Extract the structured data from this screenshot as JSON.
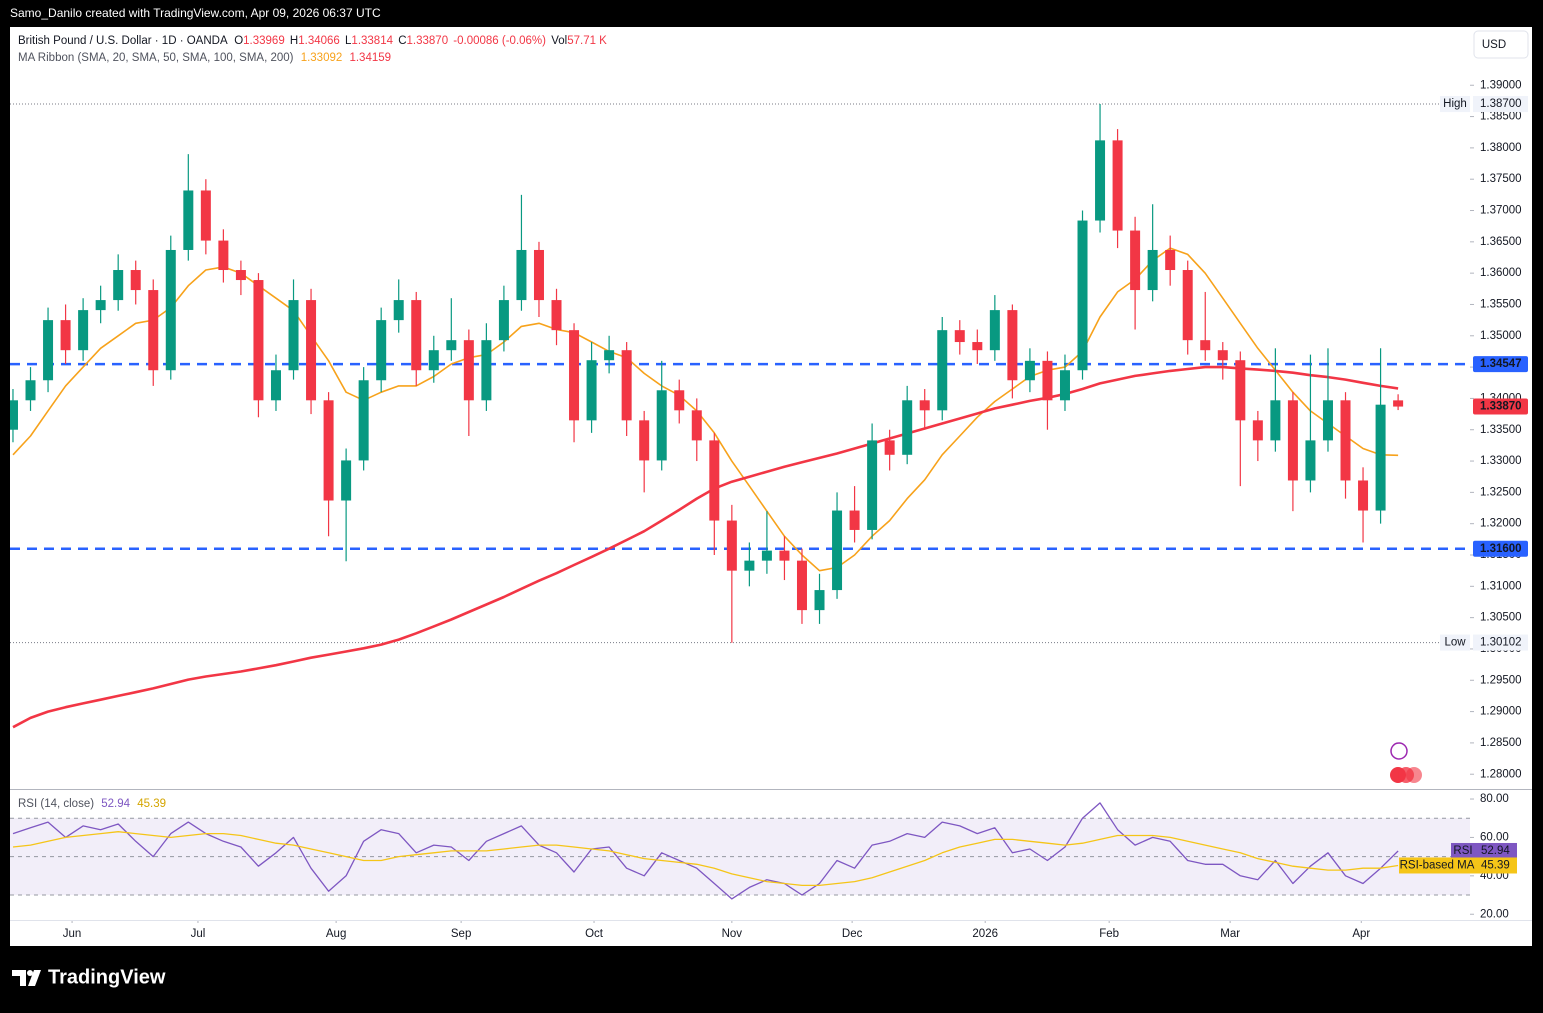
{
  "top_bar": "Samo_Danilo created with TradingView.com, Apr 09, 2026 06:37 UTC",
  "currency_button": "USD",
  "footer_logo": "TradingView",
  "chart_data": [
    {
      "type": "candlestick",
      "title": "British Pound / U.S. Dollar · 1D · OANDA",
      "ohlc_labels": [
        "O",
        "H",
        "L",
        "C"
      ],
      "change": "-0.00086 (-0.06%)",
      "volume_label": "Vol",
      "volume": "57.71 K",
      "indicator": "MA Ribbon (SMA, 20, SMA, 50, SMA, 100, SMA, 200)",
      "up_color": "#089981",
      "down_color": "#f23645",
      "candles": [
        [
          1.335,
          1.3415,
          1.333,
          1.3397
        ],
        [
          1.3397,
          1.345,
          1.338,
          1.3429
        ],
        [
          1.3429,
          1.3545,
          1.341,
          1.3525
        ],
        [
          1.3525,
          1.355,
          1.3455,
          1.3477
        ],
        [
          1.3477,
          1.356,
          1.346,
          1.3541
        ],
        [
          1.3541,
          1.358,
          1.352,
          1.3557
        ],
        [
          1.3557,
          1.363,
          1.354,
          1.3605
        ],
        [
          1.3605,
          1.362,
          1.355,
          1.3573
        ],
        [
          1.3573,
          1.359,
          1.342,
          1.3445
        ],
        [
          1.3445,
          1.366,
          1.343,
          1.3637
        ],
        [
          1.3637,
          1.379,
          1.362,
          1.3732
        ],
        [
          1.3732,
          1.375,
          1.363,
          1.3652
        ],
        [
          1.3652,
          1.367,
          1.3585,
          1.3605
        ],
        [
          1.3605,
          1.362,
          1.3565,
          1.3589
        ],
        [
          1.3589,
          1.36,
          1.337,
          1.3397
        ],
        [
          1.3397,
          1.347,
          1.338,
          1.3445
        ],
        [
          1.3445,
          1.359,
          1.343,
          1.3557
        ],
        [
          1.3557,
          1.3575,
          1.3375,
          1.3397
        ],
        [
          1.3397,
          1.341,
          1.318,
          1.3237
        ],
        [
          1.3237,
          1.332,
          1.314,
          1.3301
        ],
        [
          1.3301,
          1.345,
          1.3285,
          1.3429
        ],
        [
          1.3429,
          1.3545,
          1.341,
          1.3525
        ],
        [
          1.3525,
          1.359,
          1.3505,
          1.3557
        ],
        [
          1.3557,
          1.357,
          1.342,
          1.3445
        ],
        [
          1.3445,
          1.35,
          1.3425,
          1.3477
        ],
        [
          1.3477,
          1.356,
          1.346,
          1.3493
        ],
        [
          1.3493,
          1.351,
          1.334,
          1.3397
        ],
        [
          1.3397,
          1.352,
          1.338,
          1.3493
        ],
        [
          1.3493,
          1.358,
          1.3475,
          1.3557
        ],
        [
          1.3557,
          1.3725,
          1.354,
          1.3637
        ],
        [
          1.3637,
          1.365,
          1.353,
          1.3557
        ],
        [
          1.3557,
          1.3575,
          1.3485,
          1.3509
        ],
        [
          1.3509,
          1.352,
          1.333,
          1.3365
        ],
        [
          1.3365,
          1.349,
          1.3345,
          1.3461
        ],
        [
          1.3461,
          1.35,
          1.344,
          1.3477
        ],
        [
          1.3477,
          1.349,
          1.334,
          1.3365
        ],
        [
          1.3365,
          1.338,
          1.325,
          1.3301
        ],
        [
          1.3301,
          1.346,
          1.3285,
          1.3413
        ],
        [
          1.3413,
          1.343,
          1.336,
          1.3381
        ],
        [
          1.3381,
          1.34,
          1.33,
          1.3333
        ],
        [
          1.3333,
          1.3345,
          1.315,
          1.3205
        ],
        [
          1.3205,
          1.323,
          1.301,
          1.3125
        ],
        [
          1.3125,
          1.317,
          1.31,
          1.3141
        ],
        [
          1.3141,
          1.322,
          1.312,
          1.3157
        ],
        [
          1.3157,
          1.318,
          1.311,
          1.3141
        ],
        [
          1.3141,
          1.316,
          1.304,
          1.3062
        ],
        [
          1.3062,
          1.312,
          1.304,
          1.3094
        ],
        [
          1.3094,
          1.325,
          1.308,
          1.3221
        ],
        [
          1.3221,
          1.326,
          1.317,
          1.319
        ],
        [
          1.319,
          1.336,
          1.3175,
          1.3333
        ],
        [
          1.3333,
          1.335,
          1.3285,
          1.331
        ],
        [
          1.331,
          1.342,
          1.3295,
          1.3397
        ],
        [
          1.3397,
          1.3415,
          1.335,
          1.3381
        ],
        [
          1.3381,
          1.353,
          1.3365,
          1.3509
        ],
        [
          1.3509,
          1.3525,
          1.347,
          1.349
        ],
        [
          1.349,
          1.351,
          1.3455,
          1.3477
        ],
        [
          1.3477,
          1.3565,
          1.346,
          1.3541
        ],
        [
          1.3541,
          1.355,
          1.34,
          1.3429
        ],
        [
          1.3429,
          1.348,
          1.341,
          1.346
        ],
        [
          1.346,
          1.3475,
          1.335,
          1.3397
        ],
        [
          1.3397,
          1.347,
          1.338,
          1.3445
        ],
        [
          1.3445,
          1.37,
          1.343,
          1.3684
        ],
        [
          1.3684,
          1.387,
          1.3665,
          1.3812
        ],
        [
          1.3812,
          1.383,
          1.364,
          1.3668
        ],
        [
          1.3668,
          1.369,
          1.351,
          1.3573
        ],
        [
          1.3573,
          1.371,
          1.3555,
          1.3637
        ],
        [
          1.3637,
          1.366,
          1.358,
          1.3605
        ],
        [
          1.3605,
          1.362,
          1.347,
          1.3493
        ],
        [
          1.3493,
          1.357,
          1.346,
          1.3477
        ],
        [
          1.3477,
          1.349,
          1.343,
          1.3461
        ],
        [
          1.3461,
          1.3475,
          1.326,
          1.3365
        ],
        [
          1.3365,
          1.338,
          1.33,
          1.3333
        ],
        [
          1.3333,
          1.348,
          1.3315,
          1.3397
        ],
        [
          1.3397,
          1.341,
          1.322,
          1.3269
        ],
        [
          1.3269,
          1.347,
          1.325,
          1.3333
        ],
        [
          1.3333,
          1.348,
          1.3315,
          1.3397
        ],
        [
          1.3397,
          1.341,
          1.324,
          1.3269
        ],
        [
          1.3269,
          1.329,
          1.317,
          1.3221
        ],
        [
          1.3221,
          1.348,
          1.32,
          1.339
        ],
        [
          1.33969,
          1.34066,
          1.33814,
          1.3387
        ]
      ],
      "series": [
        {
          "color": "#f7a21b",
          "width": 1.6,
          "values": [
            1.331,
            1.334,
            1.338,
            1.342,
            1.345,
            1.348,
            1.35,
            1.352,
            1.3525,
            1.3545,
            1.358,
            1.3605,
            1.361,
            1.36,
            1.358,
            1.356,
            1.354,
            1.35,
            1.346,
            1.341,
            1.3397,
            1.341,
            1.342,
            1.342,
            1.3435,
            1.3455,
            1.3465,
            1.347,
            1.349,
            1.3515,
            1.352,
            1.351,
            1.3505,
            1.349,
            1.3475,
            1.3465,
            1.344,
            1.342,
            1.3405,
            1.338,
            1.3345,
            1.33,
            1.326,
            1.322,
            1.318,
            1.315,
            1.3125,
            1.313,
            1.315,
            1.318,
            1.3205,
            1.324,
            1.327,
            1.331,
            1.334,
            1.337,
            1.3395,
            1.3415,
            1.3435,
            1.3445,
            1.345,
            1.3475,
            1.353,
            1.357,
            1.359,
            1.362,
            1.364,
            1.363,
            1.36,
            1.356,
            1.352,
            1.348,
            1.3445,
            1.341,
            1.338,
            1.336,
            1.334,
            1.332,
            1.331,
            1.33092
          ]
        },
        {
          "color": "#f23645",
          "width": 2.6,
          "values": [
            1.2875,
            1.289,
            1.29,
            1.2907,
            1.2913,
            1.2919,
            1.2925,
            1.2931,
            1.2937,
            1.2944,
            1.2951,
            1.2956,
            1.296,
            1.2964,
            1.2969,
            1.2974,
            1.298,
            1.2986,
            1.2991,
            1.2996,
            1.3001,
            1.3007,
            1.3015,
            1.3025,
            1.3036,
            1.3047,
            1.3059,
            1.3071,
            1.3083,
            1.3096,
            1.3109,
            1.3121,
            1.3134,
            1.3147,
            1.316,
            1.3174,
            1.3188,
            1.3205,
            1.3222,
            1.324,
            1.3256,
            1.3267,
            1.3275,
            1.3283,
            1.3291,
            1.3298,
            1.3305,
            1.3312,
            1.332,
            1.3328,
            1.3336,
            1.3344,
            1.3352,
            1.336,
            1.3368,
            1.3376,
            1.3384,
            1.339,
            1.3396,
            1.3401,
            1.3407,
            1.3415,
            1.3424,
            1.343,
            1.3436,
            1.344,
            1.3444,
            1.3447,
            1.345,
            1.345,
            1.3448,
            1.3446,
            1.3444,
            1.3441,
            1.3437,
            1.3434,
            1.343,
            1.3425,
            1.342,
            1.34159
          ]
        }
      ],
      "levels": [
        {
          "value": 1.34547,
          "label": "1.34547",
          "color": "#2962ff"
        },
        {
          "value": 1.316,
          "label": "1.31600",
          "color": "#2962ff"
        }
      ],
      "high": {
        "name": "High",
        "value": 1.387,
        "label": "1.38700"
      },
      "low": {
        "name": "Low",
        "value": 1.30102,
        "label": "1.30102"
      },
      "last_price": {
        "value": 1.3387,
        "label": "1.33870"
      },
      "xlim": [
        -0.17,
        83.1
      ],
      "xticks": [
        {
          "value": 3.37,
          "label": "Jun"
        },
        {
          "value": 10.55,
          "label": "Jul"
        },
        {
          "value": 18.43,
          "label": "Aug"
        },
        {
          "value": 25.56,
          "label": "Sep"
        },
        {
          "value": 33.14,
          "label": "Oct"
        },
        {
          "value": 41.0,
          "label": "Nov"
        },
        {
          "value": 47.86,
          "label": "Dec"
        },
        {
          "value": 55.45,
          "label": "2026"
        },
        {
          "value": 62.52,
          "label": "Feb"
        },
        {
          "value": 69.42,
          "label": "Mar"
        },
        {
          "value": 76.9,
          "label": "Apr"
        }
      ],
      "ylim": [
        1.2778,
        1.3993
      ],
      "yticks": [
        {
          "value": 1.28,
          "label": "1.28000"
        },
        {
          "value": 1.285,
          "label": "1.28500"
        },
        {
          "value": 1.29,
          "label": "1.29000"
        },
        {
          "value": 1.295,
          "label": "1.29500"
        },
        {
          "value": 1.3,
          "label": "1.30000"
        },
        {
          "value": 1.305,
          "label": "1.30500"
        },
        {
          "value": 1.31,
          "label": "1.31000"
        },
        {
          "value": 1.315,
          "label": "1.31500"
        },
        {
          "value": 1.32,
          "label": "1.32000"
        },
        {
          "value": 1.325,
          "label": "1.32500"
        },
        {
          "value": 1.33,
          "label": "1.33000"
        },
        {
          "value": 1.335,
          "label": "1.33500"
        },
        {
          "value": 1.34,
          "label": "1.34000"
        },
        {
          "value": 1.345,
          "label": "1.34500"
        },
        {
          "value": 1.35,
          "label": "1.35000"
        },
        {
          "value": 1.355,
          "label": "1.35500"
        },
        {
          "value": 1.36,
          "label": "1.36000"
        },
        {
          "value": 1.365,
          "label": "1.36500"
        },
        {
          "value": 1.37,
          "label": "1.37000"
        },
        {
          "value": 1.375,
          "label": "1.37500"
        },
        {
          "value": 1.38,
          "label": "1.38000"
        },
        {
          "value": 1.385,
          "label": "1.38500"
        },
        {
          "value": 1.39,
          "label": "1.39000"
        }
      ],
      "grid": false
    },
    {
      "type": "line",
      "title": "RSI (14, close)",
      "series": [
        {
          "name": "RSI",
          "color": "#7e57c2",
          "values": [
            62,
            65,
            68,
            60,
            66,
            64,
            67,
            58,
            50,
            62,
            68,
            62,
            58,
            55,
            45,
            52,
            60,
            44,
            32,
            40,
            58,
            64,
            62,
            52,
            56,
            55,
            48,
            58,
            62,
            66,
            56,
            52,
            42,
            54,
            55,
            44,
            40,
            52,
            48,
            44,
            36,
            28,
            34,
            38,
            36,
            30,
            36,
            48,
            44,
            56,
            58,
            62,
            60,
            68,
            66,
            62,
            65,
            52,
            54,
            48,
            55,
            70,
            78,
            64,
            56,
            60,
            58,
            48,
            46,
            46,
            40,
            38,
            48,
            36,
            45,
            52,
            40,
            36,
            44,
            52.94
          ]
        },
        {
          "name": "RSI-based MA",
          "color": "#f5c518",
          "values": [
            55,
            56,
            58,
            60,
            61,
            62,
            63,
            62,
            61,
            60,
            61,
            62,
            62,
            61,
            59,
            57,
            56,
            54,
            52,
            50,
            48,
            48,
            50,
            51,
            52,
            53,
            53,
            53,
            54,
            55,
            56,
            56,
            55,
            54,
            53,
            51,
            49,
            48,
            47,
            46,
            44,
            41,
            39,
            37,
            36,
            35,
            35,
            36,
            37,
            39,
            42,
            45,
            48,
            52,
            55,
            57,
            59,
            59,
            58,
            57,
            56,
            57,
            59,
            61,
            61,
            61,
            60,
            58,
            56,
            54,
            52,
            49,
            47,
            45,
            44,
            43,
            43,
            44,
            44,
            45.39
          ]
        }
      ],
      "band": [
        30,
        70
      ],
      "band_lines": [
        70,
        50,
        30
      ],
      "ylim": [
        17,
        84.7
      ],
      "yticks": [
        {
          "value": 20,
          "label": "20.00"
        },
        {
          "value": 40,
          "label": "40.00"
        },
        {
          "value": 60,
          "label": "60.00"
        },
        {
          "value": 80,
          "label": "80.00"
        }
      ]
    }
  ]
}
